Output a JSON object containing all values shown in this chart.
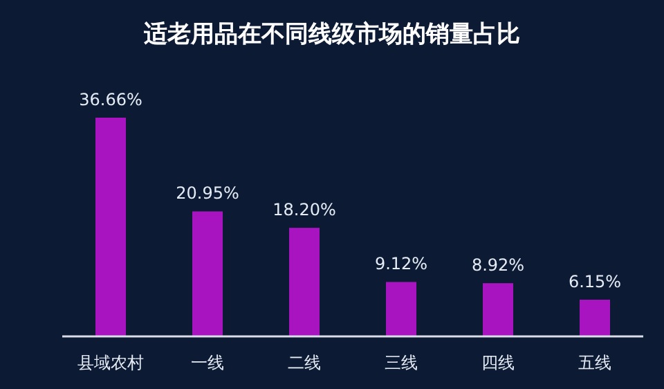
{
  "chart_data": {
    "type": "bar",
    "title": "适老用品在不同线级市场的销量占比",
    "categories": [
      "县域农村",
      "一线",
      "二线",
      "三线",
      "四线",
      "五线"
    ],
    "values": [
      36.66,
      20.95,
      18.2,
      9.12,
      8.92,
      6.15
    ],
    "value_labels": [
      "36.66%",
      "20.95%",
      "18.20%",
      "9.12%",
      "8.92%",
      "6.15%"
    ],
    "color": "#a814c0"
  }
}
